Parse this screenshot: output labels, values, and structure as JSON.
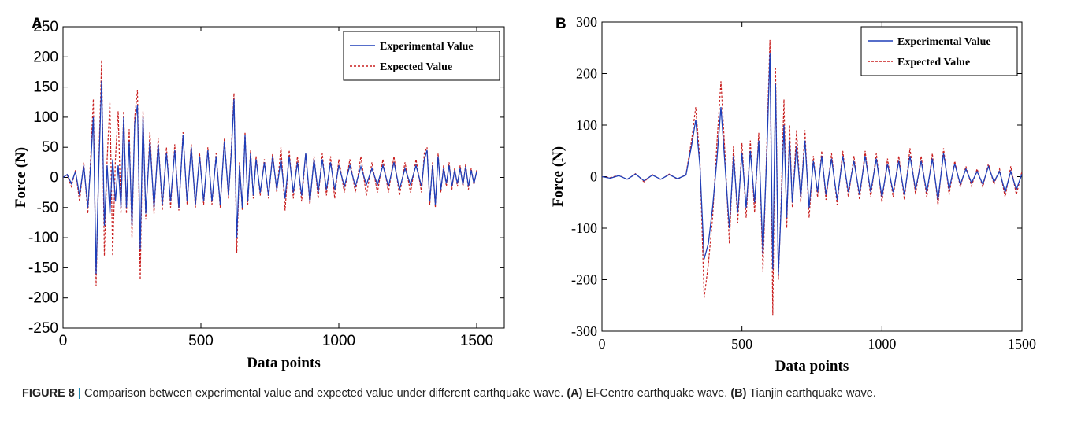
{
  "chart_data": [
    {
      "type": "line",
      "panel_label": "A",
      "xlabel": "Data points",
      "ylabel": "Force (N)",
      "xlim": [
        0,
        1600
      ],
      "ylim": [
        -250,
        250
      ],
      "xticks": [
        0,
        500,
        1000,
        1500
      ],
      "yticks": [
        -250,
        -200,
        -150,
        -100,
        -50,
        0,
        50,
        100,
        150,
        200,
        250
      ],
      "legend_position": "top-right",
      "series": [
        {
          "name": "Experimental Value",
          "color": "#1f3fb8",
          "style": "solid",
          "x": [
            0,
            15,
            30,
            45,
            60,
            75,
            90,
            100,
            110,
            120,
            130,
            140,
            150,
            160,
            170,
            180,
            190,
            200,
            210,
            220,
            230,
            240,
            250,
            260,
            270,
            280,
            290,
            300,
            315,
            330,
            345,
            360,
            375,
            390,
            405,
            420,
            435,
            450,
            465,
            480,
            495,
            510,
            525,
            540,
            555,
            570,
            585,
            600,
            610,
            620,
            630,
            640,
            650,
            660,
            670,
            680,
            690,
            700,
            715,
            730,
            745,
            760,
            775,
            790,
            805,
            820,
            835,
            850,
            865,
            880,
            895,
            910,
            925,
            940,
            955,
            970,
            985,
            1000,
            1020,
            1040,
            1060,
            1080,
            1100,
            1120,
            1140,
            1160,
            1180,
            1200,
            1220,
            1240,
            1260,
            1280,
            1300,
            1310,
            1320,
            1330,
            1340,
            1350,
            1360,
            1370,
            1380,
            1390,
            1400,
            1410,
            1420,
            1430,
            1440,
            1450,
            1460,
            1470,
            1480,
            1490,
            1500
          ],
          "y": [
            0,
            5,
            -10,
            10,
            -30,
            20,
            -50,
            20,
            100,
            -160,
            20,
            160,
            -80,
            20,
            -60,
            30,
            -40,
            20,
            -50,
            100,
            -50,
            60,
            -80,
            90,
            120,
            -120,
            100,
            -60,
            60,
            -50,
            55,
            -45,
            40,
            -40,
            45,
            -50,
            70,
            -40,
            50,
            -45,
            35,
            -40,
            45,
            -40,
            35,
            -45,
            60,
            -30,
            40,
            130,
            -100,
            20,
            -50,
            70,
            -40,
            40,
            -30,
            30,
            -25,
            25,
            -30,
            35,
            -20,
            30,
            -35,
            35,
            -25,
            25,
            -30,
            40,
            -40,
            30,
            -25,
            30,
            -20,
            25,
            -20,
            20,
            -15,
            20,
            -15,
            18,
            -12,
            15,
            -12,
            20,
            -15,
            25,
            -20,
            15,
            -12,
            20,
            -15,
            30,
            45,
            -40,
            20,
            -45,
            35,
            -20,
            15,
            -10,
            20,
            -15,
            12,
            -10,
            15,
            -12,
            18,
            -15,
            12,
            -10,
            10
          ]
        },
        {
          "name": "Expected Value",
          "color": "#c81e1e",
          "style": "dashed",
          "x": [
            0,
            15,
            30,
            45,
            60,
            75,
            90,
            100,
            110,
            120,
            130,
            140,
            150,
            160,
            170,
            180,
            190,
            200,
            210,
            220,
            230,
            240,
            250,
            260,
            270,
            280,
            290,
            300,
            315,
            330,
            345,
            360,
            375,
            390,
            405,
            420,
            435,
            450,
            465,
            480,
            495,
            510,
            525,
            540,
            555,
            570,
            585,
            600,
            610,
            620,
            630,
            640,
            650,
            660,
            670,
            680,
            690,
            700,
            715,
            730,
            745,
            760,
            775,
            790,
            805,
            820,
            835,
            850,
            865,
            880,
            895,
            910,
            925,
            940,
            955,
            970,
            985,
            1000,
            1020,
            1040,
            1060,
            1080,
            1100,
            1120,
            1140,
            1160,
            1180,
            1200,
            1220,
            1240,
            1260,
            1280,
            1300,
            1310,
            1320,
            1330,
            1340,
            1350,
            1360,
            1370,
            1380,
            1390,
            1400,
            1410,
            1420,
            1430,
            1440,
            1450,
            1460,
            1470,
            1480,
            1490,
            1500
          ],
          "y": [
            0,
            4,
            -15,
            12,
            -40,
            25,
            -60,
            30,
            130,
            -180,
            30,
            195,
            -130,
            30,
            125,
            -130,
            30,
            110,
            -60,
            110,
            -60,
            80,
            -100,
            100,
            145,
            -170,
            110,
            -70,
            75,
            -60,
            65,
            -55,
            50,
            -50,
            55,
            -55,
            75,
            -45,
            55,
            -50,
            40,
            -45,
            50,
            -45,
            40,
            -50,
            65,
            -35,
            45,
            140,
            -125,
            25,
            -55,
            75,
            -45,
            45,
            -35,
            35,
            -30,
            30,
            -35,
            40,
            -25,
            50,
            -55,
            45,
            -35,
            35,
            -40,
            40,
            -45,
            35,
            -35,
            40,
            -30,
            35,
            -35,
            30,
            -25,
            30,
            -25,
            35,
            -30,
            25,
            -25,
            30,
            -25,
            35,
            -30,
            25,
            -25,
            30,
            -25,
            40,
            50,
            -45,
            25,
            -50,
            40,
            -25,
            20,
            -15,
            25,
            -20,
            15,
            -15,
            20,
            -15,
            22,
            -20,
            15,
            -12,
            12
          ]
        }
      ]
    },
    {
      "type": "line",
      "panel_label": "B",
      "xlabel": "Data points",
      "ylabel": "Force (N)",
      "xlim": [
        0,
        1500
      ],
      "ylim": [
        -300,
        300
      ],
      "xticks": [
        0,
        500,
        1000,
        1500
      ],
      "yticks": [
        -300,
        -200,
        -100,
        0,
        100,
        200,
        300
      ],
      "legend_position": "top-right",
      "series": [
        {
          "name": "Experimental Value",
          "color": "#1f3fb8",
          "style": "solid",
          "x": [
            0,
            30,
            60,
            90,
            120,
            150,
            180,
            210,
            240,
            270,
            300,
            320,
            335,
            350,
            365,
            380,
            395,
            410,
            425,
            440,
            455,
            470,
            485,
            500,
            515,
            530,
            545,
            560,
            575,
            590,
            600,
            610,
            620,
            630,
            640,
            650,
            660,
            670,
            680,
            695,
            710,
            725,
            740,
            755,
            770,
            785,
            800,
            820,
            840,
            860,
            880,
            900,
            920,
            940,
            960,
            980,
            1000,
            1020,
            1040,
            1060,
            1080,
            1100,
            1120,
            1140,
            1160,
            1180,
            1200,
            1220,
            1240,
            1260,
            1280,
            1300,
            1320,
            1340,
            1360,
            1380,
            1400,
            1420,
            1440,
            1460,
            1480,
            1500
          ],
          "y": [
            0,
            -3,
            2,
            -5,
            5,
            -8,
            3,
            -5,
            4,
            -4,
            3,
            60,
            110,
            20,
            -160,
            -130,
            -60,
            30,
            135,
            20,
            -100,
            40,
            -70,
            45,
            -60,
            50,
            -50,
            70,
            -150,
            60,
            240,
            -180,
            180,
            -190,
            -60,
            100,
            -80,
            70,
            -50,
            60,
            -40,
            70,
            -60,
            30,
            -30,
            40,
            -35,
            35,
            -45,
            40,
            -30,
            30,
            -35,
            40,
            -30,
            35,
            -40,
            25,
            -30,
            30,
            -35,
            40,
            -25,
            30,
            -30,
            35,
            -45,
            45,
            -25,
            25,
            -15,
            15,
            -12,
            10,
            -15,
            20,
            -10,
            10,
            -30,
            10,
            -25,
            5
          ]
        },
        {
          "name": "Expected Value",
          "color": "#c81e1e",
          "style": "dashed",
          "x": [
            0,
            30,
            60,
            90,
            120,
            150,
            180,
            210,
            240,
            270,
            300,
            320,
            335,
            350,
            365,
            380,
            395,
            410,
            425,
            440,
            455,
            470,
            485,
            500,
            515,
            530,
            545,
            560,
            575,
            590,
            600,
            610,
            620,
            630,
            640,
            650,
            660,
            670,
            680,
            695,
            710,
            725,
            740,
            755,
            770,
            785,
            800,
            820,
            840,
            860,
            880,
            900,
            920,
            940,
            960,
            980,
            1000,
            1020,
            1040,
            1060,
            1080,
            1100,
            1120,
            1140,
            1160,
            1180,
            1200,
            1220,
            1240,
            1260,
            1280,
            1300,
            1320,
            1340,
            1360,
            1380,
            1400,
            1420,
            1440,
            1460,
            1480,
            1500
          ],
          "y": [
            0,
            -2,
            3,
            -6,
            6,
            -10,
            4,
            -6,
            5,
            -5,
            4,
            70,
            135,
            30,
            -235,
            -170,
            -80,
            60,
            185,
            40,
            -130,
            60,
            -90,
            65,
            -80,
            70,
            -70,
            85,
            -185,
            80,
            265,
            -270,
            210,
            -200,
            -50,
            150,
            -100,
            100,
            -60,
            90,
            -50,
            90,
            -80,
            40,
            -40,
            50,
            -45,
            45,
            -55,
            50,
            -40,
            40,
            -45,
            50,
            -40,
            45,
            -50,
            35,
            -40,
            40,
            -45,
            55,
            -35,
            40,
            -40,
            45,
            -55,
            55,
            -35,
            30,
            -20,
            20,
            -18,
            15,
            -20,
            25,
            -15,
            15,
            -40,
            20,
            -35,
            10
          ]
        }
      ]
    }
  ],
  "caption": {
    "figure_label": "FIGURE 8",
    "separator": "|",
    "main": "Comparison between experimental value and expected value under different earthquake wave.",
    "part_a_label": "(A)",
    "part_a_text": "El-Centro earthquake wave.",
    "part_b_label": "(B)",
    "part_b_text": "Tianjin earthquake wave."
  }
}
